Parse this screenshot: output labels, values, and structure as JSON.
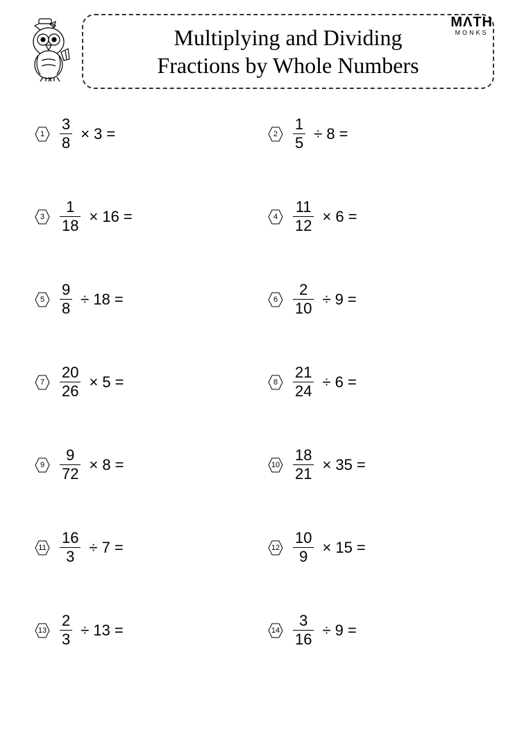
{
  "title": {
    "line1": "Multiplying and Dividing",
    "line2": "Fractions by Whole Numbers"
  },
  "logo": {
    "top": "MΛTH",
    "bottom": "MONKS"
  },
  "colors": {
    "text": "#000000",
    "background": "#ffffff",
    "border": "#333333"
  },
  "typography": {
    "title_fontsize": 32,
    "problem_fontsize": 22,
    "hexnum_fontsize": 11
  },
  "layout": {
    "columns": 2,
    "row_gap": 70
  },
  "problems": [
    {
      "n": "1",
      "num": "3",
      "den": "8",
      "op": "×",
      "whole": "3"
    },
    {
      "n": "2",
      "num": "1",
      "den": "5",
      "op": "÷",
      "whole": "8"
    },
    {
      "n": "3",
      "num": "1",
      "den": "18",
      "op": "×",
      "whole": "16"
    },
    {
      "n": "4",
      "num": "11",
      "den": "12",
      "op": "×",
      "whole": "6"
    },
    {
      "n": "5",
      "num": "9",
      "den": "8",
      "op": "÷",
      "whole": "18"
    },
    {
      "n": "6",
      "num": "2",
      "den": "10",
      "op": "÷",
      "whole": "9"
    },
    {
      "n": "7",
      "num": "20",
      "den": "26",
      "op": "×",
      "whole": "5"
    },
    {
      "n": "8",
      "num": "21",
      "den": "24",
      "op": "÷",
      "whole": "6"
    },
    {
      "n": "9",
      "num": "9",
      "den": "72",
      "op": "×",
      "whole": "8"
    },
    {
      "n": "10",
      "num": "18",
      "den": "21",
      "op": "×",
      "whole": "35"
    },
    {
      "n": "11",
      "num": "16",
      "den": "3",
      "op": "÷",
      "whole": "7"
    },
    {
      "n": "12",
      "num": "10",
      "den": "9",
      "op": "×",
      "whole": "15"
    },
    {
      "n": "13",
      "num": "2",
      "den": "3",
      "op": "÷",
      "whole": "13"
    },
    {
      "n": "14",
      "num": "3",
      "den": "16",
      "op": "÷",
      "whole": "9"
    }
  ],
  "equals": "="
}
